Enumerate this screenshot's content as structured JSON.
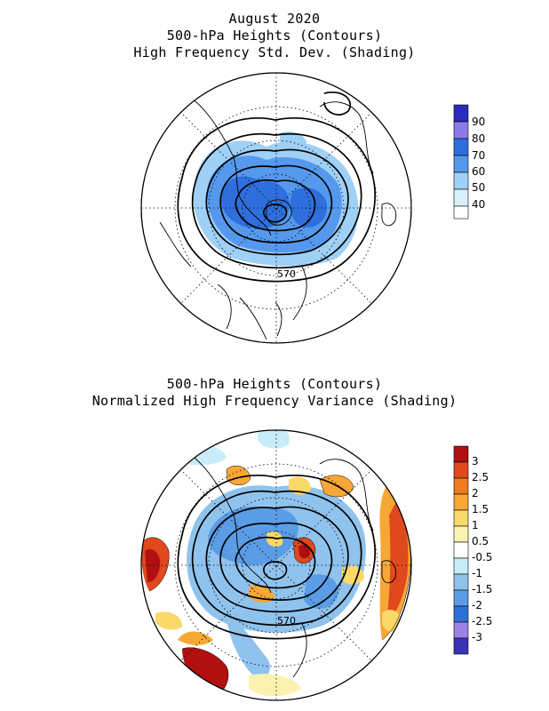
{
  "top_panel": {
    "title_lines": [
      "August 2020",
      "500-hPa Heights (Contours)",
      "High Frequency Std. Dev. (Shading)"
    ],
    "contour_label": "570",
    "colorbar": {
      "labels": [
        "90",
        "80",
        "70",
        "60",
        "50",
        "40"
      ],
      "colors": [
        "#2b2bbf",
        "#8c7be6",
        "#2f6fdd",
        "#5599ee",
        "#9fd0f6",
        "#ffffff"
      ]
    }
  },
  "bottom_panel": {
    "title_lines": [
      "500-hPa Heights (Contours)",
      "Normalized High Frequency Variance (Shading)"
    ],
    "contour_label": "570",
    "colorbar": {
      "labels": [
        "3",
        "2.5",
        "2",
        "1.5",
        "1",
        "0.5",
        "-0.5",
        "-1",
        "-1.5",
        "-2",
        "-2.5",
        "-3"
      ],
      "colors": [
        "#b01010",
        "#e0481e",
        "#f07a1e",
        "#f7a735",
        "#fbd86a",
        "#fbf2b0",
        "#ffffff",
        "#c8ecf8",
        "#8fc3ee",
        "#5b9ce6",
        "#2f70d8",
        "#9c82e6",
        "#3a33b8"
      ]
    }
  }
}
